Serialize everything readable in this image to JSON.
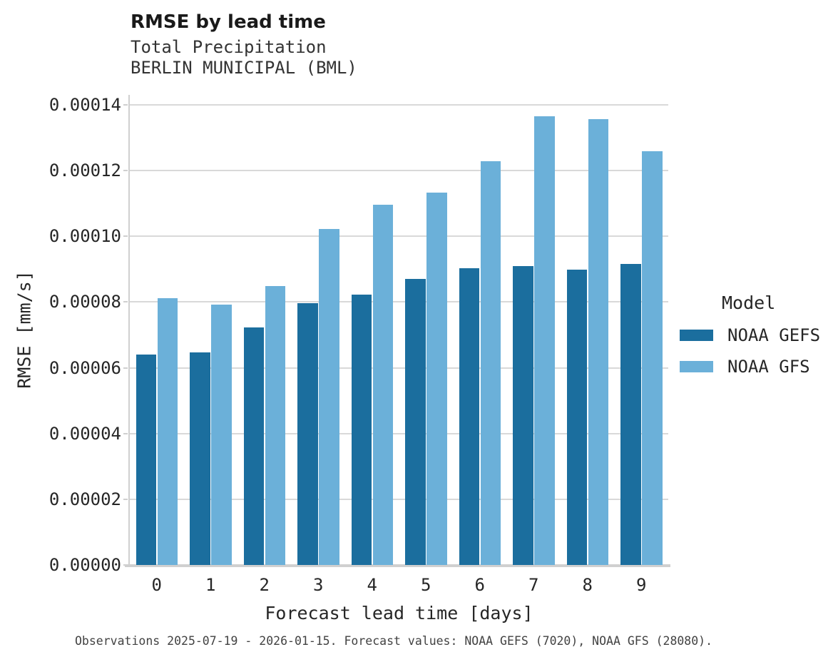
{
  "header": {
    "title": "RMSE by lead time",
    "subtitle1": "Total Precipitation",
    "subtitle2": "BERLIN MUNICIPAL (BML)"
  },
  "chart_data": {
    "type": "bar",
    "title": "RMSE by lead time",
    "subtitle": [
      "Total Precipitation",
      "BERLIN MUNICIPAL (BML)"
    ],
    "categories": [
      "0",
      "1",
      "2",
      "3",
      "4",
      "5",
      "6",
      "7",
      "8",
      "9"
    ],
    "series": [
      {
        "name": "NOAA GEFS",
        "color": "#1b6e9e",
        "values": [
          6.4e-05,
          6.46e-05,
          7.23e-05,
          7.96e-05,
          8.22e-05,
          8.71e-05,
          9.04e-05,
          9.09e-05,
          8.98e-05,
          9.17e-05
        ]
      },
      {
        "name": "NOAA GFS",
        "color": "#6bb0d9",
        "values": [
          8.11e-05,
          7.93e-05,
          8.49e-05,
          0.0001022,
          0.0001097,
          0.0001133,
          0.0001229,
          0.0001365,
          0.0001356,
          0.000126
        ]
      }
    ],
    "xlabel": "Forecast lead time [days]",
    "ylabel": "RMSE [mm/s]",
    "ylim": [
      0,
      0.00014
    ],
    "ytick_values": [
      0.0,
      2e-05,
      4e-05,
      6e-05,
      8e-05,
      0.0001,
      0.00012,
      0.00014
    ],
    "ytick_labels": [
      "0.00000",
      "0.00002",
      "0.00004",
      "0.00006",
      "0.00008",
      "0.00010",
      "0.00012",
      "0.00014"
    ],
    "grid": true,
    "legend": {
      "title": "Model",
      "position": "right",
      "entries": [
        "NOAA GEFS",
        "NOAA GFS"
      ]
    }
  },
  "caption": "Observations 2025-07-19 - 2026-01-15. Forecast values: NOAA GEFS (7020), NOAA GFS (28080).",
  "colors": {
    "gefs": "#1b6e9e",
    "gfs": "#6bb0d9",
    "gridline": "#d9d9d9",
    "axis": "#d0d0d0",
    "text": "#262626"
  }
}
